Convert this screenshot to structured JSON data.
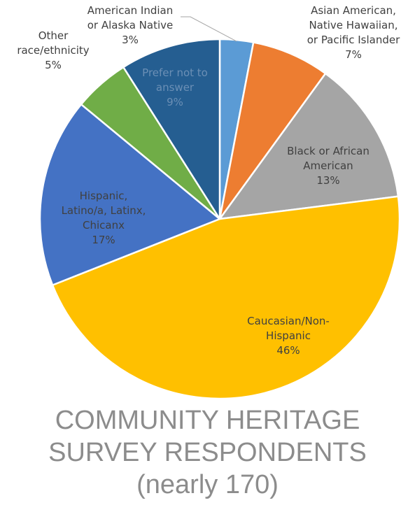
{
  "chart_data": {
    "type": "pie",
    "title": [
      "COMMUNITY HERITAGE",
      "SURVEY RESPONDENTS",
      "(nearly 170)"
    ],
    "legend": "none",
    "slices": [
      {
        "label": [
          "American Indian",
          "or Alaska Native"
        ],
        "pct_label": "3%",
        "value": 3,
        "color": "#5b9bd5",
        "label_color": "#404040"
      },
      {
        "label": [
          "Asian American,",
          "Native Hawaiian,",
          "or Pacific Islander"
        ],
        "pct_label": "7%",
        "value": 7,
        "color": "#ed7d31",
        "label_color": "#404040"
      },
      {
        "label": [
          "Black or African",
          "American"
        ],
        "pct_label": "13%",
        "value": 13,
        "color": "#a5a5a5",
        "label_color": "#404040"
      },
      {
        "label": [
          "Caucasian/Non-",
          "Hispanic"
        ],
        "pct_label": "46%",
        "value": 46,
        "color": "#ffc000",
        "label_color": "#404040"
      },
      {
        "label": [
          "Hispanic,",
          "Latino/a, Latinx,",
          "Chicanx"
        ],
        "pct_label": "17%",
        "value": 17,
        "color": "#4472c4",
        "label_color": "#404040"
      },
      {
        "label": [
          "Other",
          "race/ethnicity"
        ],
        "pct_label": "5%",
        "value": 5,
        "color": "#70ad47",
        "label_color": "#404040"
      },
      {
        "label": [
          "Prefer not to",
          "answer"
        ],
        "pct_label": "9%",
        "value": 9,
        "color": "#255e91",
        "label_color": "#6b8fb5"
      }
    ]
  }
}
